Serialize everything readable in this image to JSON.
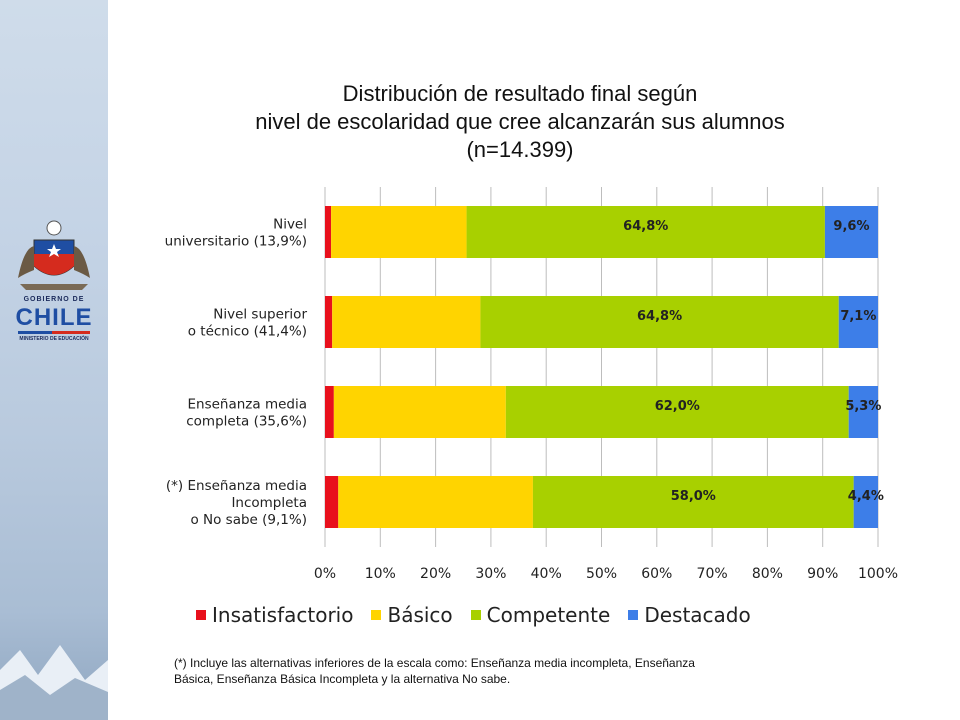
{
  "slide": {
    "title_lines": [
      "Distribución de resultado final según",
      "nivel de escolaridad que cree alcanzarán sus alumnos",
      "(n=14.399)"
    ],
    "footnote_lines": [
      "(*) Incluye las alternativas inferiores de la escala como: Enseñanza media incompleta, Enseñanza",
      "Básica, Enseñanza Básica Incompleta y la alternativa No sabe."
    ],
    "logo": {
      "gobierno": "GOBIERNO DE",
      "chile": "CHILE",
      "ministerio": "MINISTERIO DE EDUCACIÓN"
    }
  },
  "chart_data": {
    "type": "bar",
    "orientation": "horizontal",
    "stacked": true,
    "categories": [
      [
        "Nivel",
        "universitario (13,9%)"
      ],
      [
        "Nivel superior",
        "o técnico  (41,4%)"
      ],
      [
        "Enseñanza media",
        "completa (35,6%)"
      ],
      [
        "(*) Enseñanza media",
        "Incompleta",
        "o No sabe (9,1%)"
      ]
    ],
    "series": [
      {
        "name": "Insatisfactorio",
        "color": "#e8101c",
        "values": [
          1.1,
          1.3,
          1.6,
          2.4
        ],
        "labels": [
          "",
          "",
          "",
          ""
        ]
      },
      {
        "name": "Básico",
        "color": "#ffd400",
        "values": [
          24.5,
          26.8,
          31.1,
          35.2
        ],
        "labels": [
          "",
          "",
          "",
          ""
        ]
      },
      {
        "name": "Competente",
        "color": "#a8d000",
        "values": [
          64.8,
          64.8,
          62.0,
          58.0
        ],
        "labels": [
          "64,8%",
          "64,8%",
          "62,0%",
          "58,0%"
        ]
      },
      {
        "name": "Destacado",
        "color": "#3d7ee8",
        "values": [
          9.6,
          7.1,
          5.3,
          4.4
        ],
        "labels": [
          "9,6%",
          "7,1%",
          "5,3%",
          "4,4%"
        ]
      }
    ],
    "xlim": [
      0,
      100
    ],
    "xticks": [
      "0%",
      "10%",
      "20%",
      "30%",
      "40%",
      "50%",
      "60%",
      "70%",
      "80%",
      "90%",
      "100%"
    ],
    "grid": true,
    "legend_position": "bottom"
  }
}
